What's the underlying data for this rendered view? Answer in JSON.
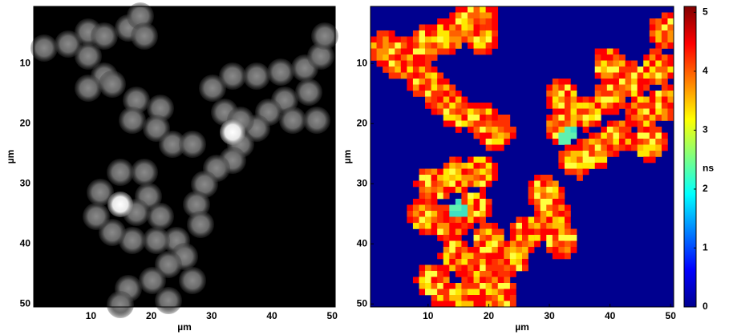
{
  "chart_data": [
    {
      "type": "image",
      "colormap": "gray",
      "xlabel": "µm",
      "ylabel": "µm",
      "xlim": [
        0.5,
        50.5
      ],
      "ylim": [
        50.5,
        0.5
      ],
      "xticks": [
        10,
        20,
        30,
        40,
        50
      ],
      "yticks": [
        10,
        20,
        30,
        40,
        50
      ]
    },
    {
      "type": "image",
      "colormap": "jet",
      "xlabel": "µm",
      "ylabel": "µm",
      "xlim": [
        0.5,
        50.5
      ],
      "ylim": [
        50.5,
        0.5
      ],
      "xticks": [
        10,
        20,
        30,
        40,
        50
      ],
      "yticks": [
        10,
        20,
        30,
        40,
        50
      ]
    },
    {
      "type": "colorbar",
      "colormap": "jet",
      "label": "ns",
      "ylim": [
        0,
        5.1
      ],
      "yticks": [
        0,
        1,
        2,
        3,
        4,
        5
      ]
    }
  ]
}
